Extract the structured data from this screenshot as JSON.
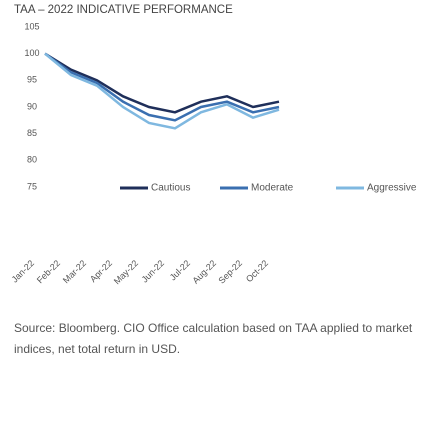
{
  "chart_data": {
    "type": "line",
    "title": "TAA – 2022 INDICATIVE PERFORMANCE",
    "categories": [
      "Jan-22",
      "Feb-22",
      "Mar-22",
      "Apr-22",
      "May-22",
      "Jun-22",
      "Jul-22",
      "Aug-22",
      "Sep-22",
      "Oct-22"
    ],
    "series": [
      {
        "name": "Cautious",
        "color": "#1f2f5a",
        "values": [
          100,
          97,
          95,
          92,
          90,
          89,
          91,
          92,
          90,
          91
        ]
      },
      {
        "name": "Moderate",
        "color": "#3a6fb0",
        "values": [
          100,
          96.5,
          94.5,
          91,
          88.5,
          87.5,
          90,
          91,
          89,
          90
        ]
      },
      {
        "name": "Aggressive",
        "color": "#7fb8e0",
        "values": [
          100,
          96,
          94,
          90,
          87,
          86,
          89,
          90.5,
          88,
          89.5
        ]
      }
    ],
    "ylim": [
      75,
      105
    ],
    "yticks": [
      75,
      80,
      85,
      90,
      95,
      100,
      105
    ],
    "source": "Source: Bloomberg. CIO Office calculation based on TAA applied to market indices, net total return in USD."
  }
}
